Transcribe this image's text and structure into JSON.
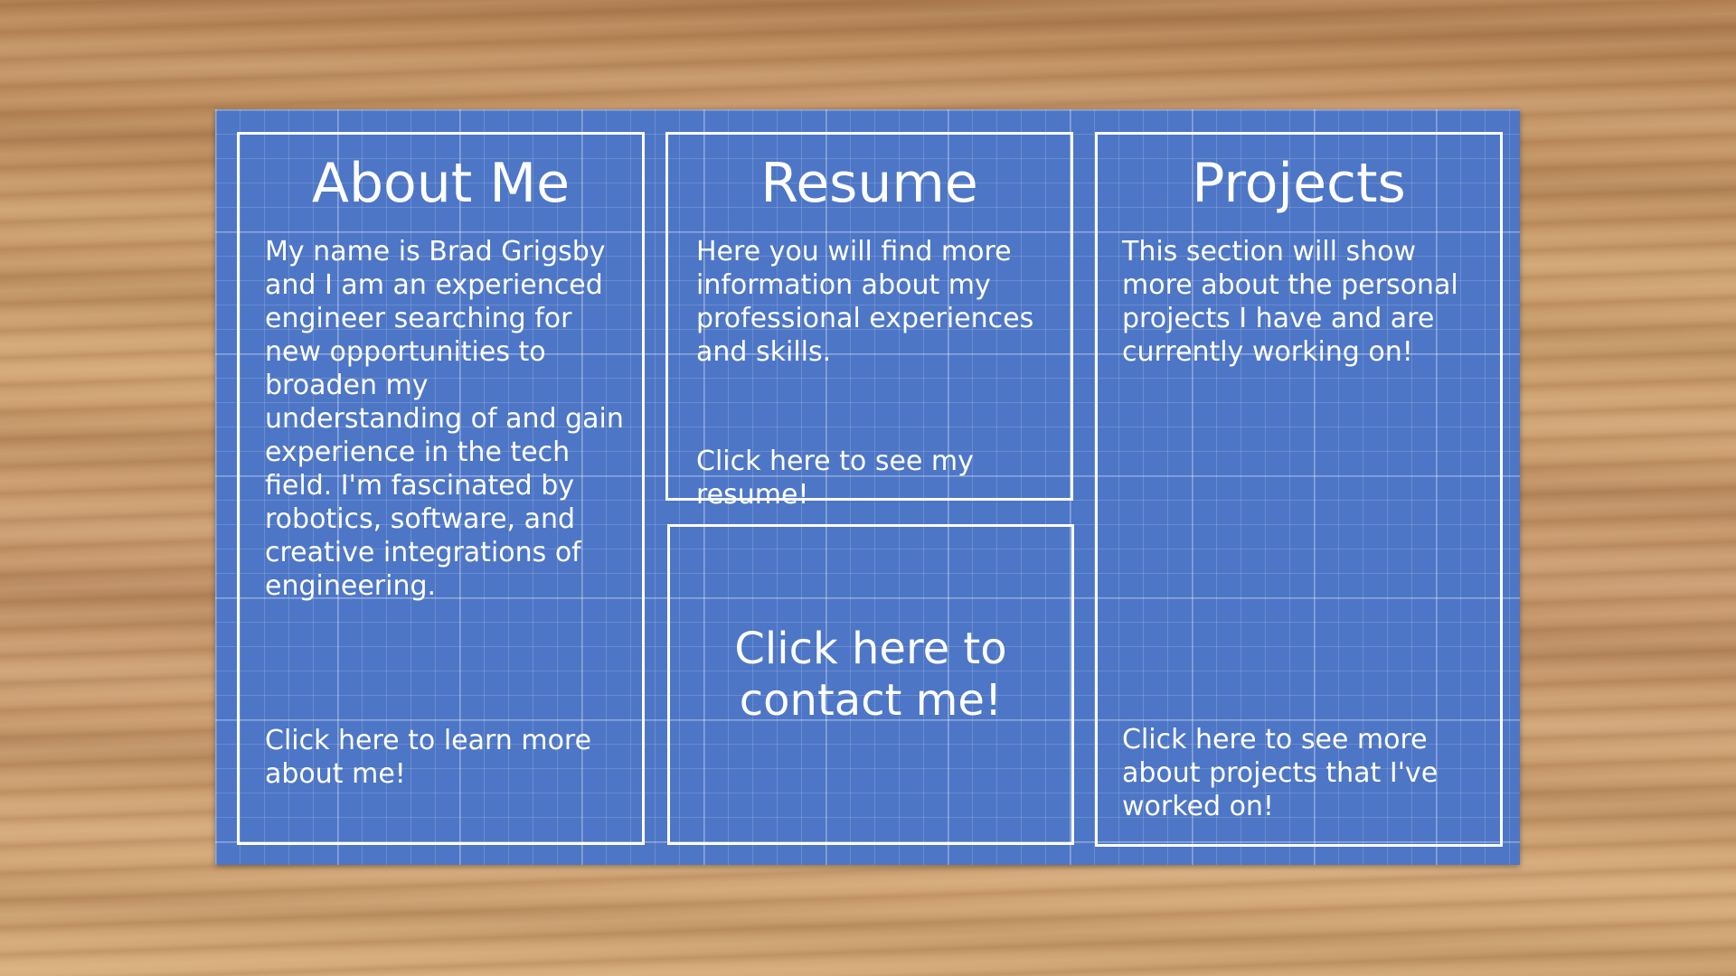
{
  "about": {
    "title": "About Me",
    "body": "My name is Brad Grigsby and I am an experienced engineer searching for new opportunities to broaden my understanding of and gain experience in the tech field. I'm fascinated by robotics, software, and creative integrations of engineering.",
    "link": "Click here to learn more about me!"
  },
  "resume": {
    "title": "Resume",
    "body": "Here you will find more information about my professional experiences and skills.",
    "link": "Click here to see my resume!"
  },
  "contact": {
    "link": "Click here to contact me!"
  },
  "projects": {
    "title": "Projects",
    "body": "This section will show more about the personal projects I have and are currently working on!",
    "link": "Click here to see more about projects that I've worked on!"
  },
  "colors": {
    "board": "#4d76c6",
    "panel_border": "#ffffff",
    "text": "#ffffff"
  }
}
